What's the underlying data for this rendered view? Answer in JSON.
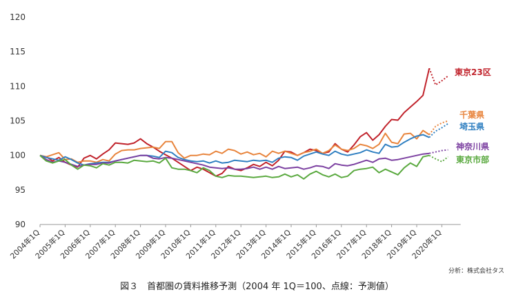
{
  "chart_data": {
    "type": "line",
    "title": "",
    "xlabel": "",
    "ylabel": "",
    "ylim": [
      90,
      120
    ],
    "yticks": [
      90,
      95,
      100,
      105,
      110,
      115,
      120
    ],
    "grid": false,
    "x_tick_labels": [
      "2004年1Q",
      "2005年1Q",
      "2006年1Q",
      "2007年1Q",
      "2008年1Q",
      "2009年1Q",
      "2010年1Q",
      "2011年1Q",
      "2012年1Q",
      "2013年1Q",
      "2014年1Q",
      "2015年1Q",
      "2016年1Q",
      "2017年1Q",
      "2018年1Q",
      "2019年1Q",
      "2020年1Q"
    ],
    "x_note": "quarterly, 2004 Q1 = 0; dotted segment = forecast",
    "series": [
      {
        "name": "東京23区",
        "color": "#c0212a",
        "values": [
          100,
          99.8,
          99.2,
          99.7,
          99.0,
          98.6,
          98.3,
          99.6,
          100.0,
          99.5,
          100.2,
          100.8,
          101.8,
          101.7,
          101.6,
          101.8,
          102.4,
          101.7,
          101.2,
          100.6,
          100.1,
          99.6,
          99.0,
          98.4,
          97.8,
          98.3,
          98.0,
          97.5,
          97.0,
          97.4,
          98.4,
          98.0,
          97.8,
          98.2,
          98.7,
          98.4,
          99.0,
          98.5,
          99.3,
          100.6,
          100.5,
          100.0,
          100.4,
          100.9,
          100.7,
          100.3,
          100.5,
          101.7,
          100.9,
          100.5,
          101.5,
          102.7,
          103.3,
          102.2,
          103.0,
          104.2,
          105.2,
          105.1,
          106.2,
          107.0,
          107.8,
          108.7,
          112.6
        ],
        "forecast": [
          112.6,
          110.2,
          110.8,
          111.5
        ]
      },
      {
        "name": "千葉県",
        "color": "#e8843c",
        "values": [
          100,
          99.8,
          100.1,
          100.4,
          99.4,
          99.5,
          99.0,
          99.2,
          99.2,
          99.0,
          99.4,
          99.2,
          100.2,
          100.7,
          100.8,
          100.8,
          101.0,
          101.1,
          101.2,
          101.0,
          102.0,
          102.0,
          100.4,
          99.6,
          100.0,
          100.0,
          100.2,
          100.1,
          100.6,
          100.3,
          100.9,
          100.7,
          100.2,
          100.5,
          100.1,
          100.3,
          99.8,
          100.6,
          100.3,
          100.6,
          100.3,
          100.0,
          100.4,
          100.6,
          100.9,
          100.3,
          100.7,
          101.5,
          100.9,
          100.7,
          101.0,
          101.6,
          101.4,
          101.0,
          101.6,
          103.2,
          101.9,
          101.7,
          103.1,
          103.2,
          102.4,
          103.6,
          103.0
        ],
        "forecast": [
          103.0,
          104.2,
          104.7,
          105.0
        ]
      },
      {
        "name": "埼玉県",
        "color": "#2f7fc1",
        "values": [
          100,
          99.7,
          99.5,
          99.3,
          99.8,
          99.4,
          98.9,
          98.6,
          98.8,
          98.9,
          99.0,
          99.0,
          99.2,
          99.4,
          99.6,
          99.8,
          100.0,
          100.0,
          99.9,
          99.7,
          100.6,
          100.4,
          99.7,
          99.4,
          99.2,
          99.1,
          99.2,
          98.9,
          99.2,
          98.9,
          99.0,
          99.3,
          99.2,
          99.1,
          99.3,
          99.2,
          99.3,
          99.0,
          99.6,
          99.8,
          99.7,
          99.3,
          99.9,
          100.2,
          100.5,
          100.2,
          100.0,
          100.6,
          100.2,
          100.0,
          100.2,
          100.4,
          100.8,
          100.5,
          100.3,
          101.6,
          101.2,
          101.3,
          101.9,
          102.4,
          102.8,
          103.0,
          102.6
        ],
        "forecast": [
          102.6,
          103.5,
          104.0,
          104.6
        ]
      },
      {
        "name": "神奈川県",
        "color": "#7b3fa0",
        "values": [
          100,
          99.4,
          99.0,
          99.2,
          99.0,
          98.7,
          98.4,
          98.6,
          98.7,
          98.7,
          98.9,
          98.9,
          99.2,
          99.4,
          99.6,
          99.8,
          100.0,
          100.0,
          99.6,
          99.5,
          99.7,
          99.6,
          99.4,
          99.2,
          99.0,
          98.8,
          98.6,
          98.3,
          98.2,
          98.1,
          98.2,
          98.0,
          98.0,
          98.1,
          98.3,
          98.0,
          98.3,
          98.0,
          98.4,
          98.1,
          98.2,
          98.3,
          98.0,
          98.2,
          98.5,
          98.4,
          98.1,
          98.8,
          98.6,
          98.5,
          98.7,
          99.0,
          99.3,
          99.0,
          99.5,
          99.6,
          99.3,
          99.4,
          99.6,
          99.8,
          100.0,
          100.2,
          100.3
        ],
        "forecast": [
          100.3,
          100.5,
          100.7,
          100.8
        ]
      },
      {
        "name": "東京市部",
        "color": "#5aa93f",
        "values": [
          100,
          99.2,
          98.9,
          99.2,
          99.4,
          98.6,
          98.0,
          98.6,
          98.5,
          98.2,
          98.8,
          98.6,
          99.0,
          99.0,
          98.9,
          99.3,
          99.2,
          99.1,
          99.2,
          98.9,
          99.6,
          98.2,
          98.0,
          98.0,
          97.8,
          97.5,
          98.2,
          97.8,
          97.0,
          96.8,
          97.1,
          97.0,
          97.0,
          96.9,
          96.8,
          96.9,
          97.0,
          96.8,
          96.9,
          97.3,
          96.9,
          97.2,
          96.6,
          97.3,
          97.7,
          97.2,
          96.9,
          97.3,
          96.8,
          97.0,
          97.8,
          98.0,
          98.1,
          98.3,
          97.5,
          98.0,
          97.6,
          97.2,
          98.2,
          98.9,
          98.4,
          99.8,
          100.0
        ],
        "forecast": [
          100.0,
          99.5,
          99.1,
          99.8
        ]
      }
    ],
    "series_labels_placement": "right of lines"
  },
  "source_note": "分析：株式会社タス",
  "caption": "図３　首都圏の賃料推移予測（2004 年 1Q＝100、点線：予測値）"
}
